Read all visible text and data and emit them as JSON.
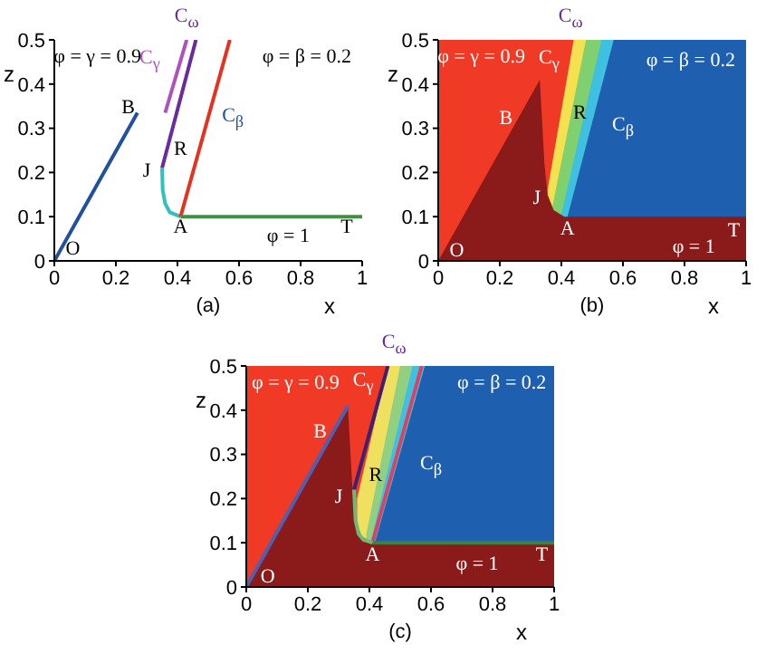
{
  "chart_data": [
    {
      "type": "line",
      "xlabel": "x",
      "ylabel": "z",
      "xlim": [
        0,
        1
      ],
      "xticks": [
        0,
        0.2,
        0.4,
        0.6,
        0.8,
        1
      ],
      "ylim": [
        0,
        0.5
      ],
      "yticks": [
        0,
        0.1,
        0.2,
        0.3,
        0.4,
        0.5
      ],
      "series": [
        {
          "color": "#2050a0",
          "x": [
            0,
            0.27
          ],
          "values": [
            0,
            0.335
          ]
        },
        {
          "color": "#b050c0",
          "x": [
            0.36,
            0.43
          ],
          "values": [
            0.335,
            0.5
          ]
        },
        {
          "color": "#6a2aa0",
          "x": [
            0.35,
            0.46
          ],
          "values": [
            0.21,
            0.5
          ]
        },
        {
          "color": "#30c0c0",
          "x": [
            0.35,
            0.352,
            0.36,
            0.375,
            0.41
          ],
          "values": [
            0.21,
            0.16,
            0.13,
            0.11,
            0.1
          ]
        },
        {
          "color": "#e83020",
          "x": [
            0.41,
            0.57
          ],
          "values": [
            0.1,
            0.5
          ]
        },
        {
          "color": "#409040",
          "x": [
            0.41,
            1
          ],
          "values": [
            0.1,
            0.1
          ]
        }
      ],
      "annotations": [
        "φ = γ = 0.9",
        "C$_{γ}$",
        "C$_{ω}$",
        "φ = β = 0.2",
        "B",
        "C$_{β}$",
        "R",
        "J",
        "A",
        "T",
        "φ = 1",
        "O",
        "(a)"
      ]
    },
    {
      "type": "area",
      "xlabel": "x",
      "ylabel": "z",
      "xlim": [
        0,
        1
      ],
      "xticks": [
        0,
        0.2,
        0.4,
        0.6,
        0.8,
        1
      ],
      "ylim": [
        0,
        0.5
      ],
      "yticks": [
        0,
        0.1,
        0.2,
        0.3,
        0.4,
        0.5
      ],
      "series": [
        {
          "color": "#f03a25",
          "x": [
            0,
            1
          ],
          "values": [
            0.5,
            0.5
          ]
        },
        {
          "color": "#f5e050",
          "x": [
            0.355,
            0.44,
            1
          ],
          "values": [
            0.16,
            0.5,
            0.5
          ]
        },
        {
          "color": "#80d070",
          "x": [
            0.37,
            0.48,
            1
          ],
          "values": [
            0.12,
            0.5,
            0.5
          ]
        },
        {
          "color": "#40c0e0",
          "x": [
            0.4,
            0.53,
            1
          ],
          "values": [
            0.105,
            0.5,
            0.5
          ]
        },
        {
          "color": "#1f5fb0",
          "x": [
            0.42,
            0.57,
            1
          ],
          "values": [
            0.1,
            0.5,
            0.5
          ]
        },
        {
          "color": "#8b1a1a",
          "x": [
            0,
            0.33,
            0.345,
            0.355,
            0.375,
            0.41,
            1
          ],
          "values": [
            0,
            0.41,
            0.22,
            0.15,
            0.115,
            0.1,
            0.1
          ]
        }
      ],
      "annotations": [
        "φ = γ = 0.9",
        "C$_{γ}$",
        "C$_{ω}$",
        "φ = β = 0.2",
        "B",
        "R",
        "C$_{β}$",
        "J",
        "A",
        "T",
        "φ = 1",
        "O",
        "(b)"
      ]
    },
    {
      "type": "area",
      "xlabel": "x",
      "ylabel": "z",
      "xlim": [
        0,
        1
      ],
      "xticks": [
        0,
        0.2,
        0.4,
        0.6,
        0.8,
        1
      ],
      "ylim": [
        0,
        0.5
      ],
      "yticks": [
        0,
        0.1,
        0.2,
        0.3,
        0.4,
        0.5
      ],
      "series": [
        {
          "color": "#f03a25",
          "x": [
            0,
            1
          ],
          "values": [
            0.5,
            0.5
          ]
        },
        {
          "color": "#f0e060",
          "x": [
            0.36,
            0.46,
            1
          ],
          "values": [
            0.2,
            0.5,
            0.5
          ]
        },
        {
          "color": "#90d080",
          "x": [
            0.39,
            0.5,
            1
          ],
          "values": [
            0.12,
            0.5,
            0.5
          ]
        },
        {
          "color": "#40c0e0",
          "x": [
            0.405,
            0.54,
            1
          ],
          "values": [
            0.105,
            0.5,
            0.5
          ]
        },
        {
          "color": "#1f5fb0",
          "x": [
            0.42,
            0.58,
            1
          ],
          "values": [
            0.105,
            0.5,
            0.5
          ]
        },
        {
          "color": "#8b1a1a",
          "x": [
            0,
            0.33,
            0.345,
            0.355,
            0.375,
            0.41,
            1
          ],
          "values": [
            0,
            0.41,
            0.22,
            0.15,
            0.115,
            0.1,
            0.1
          ]
        },
        {
          "type": "line",
          "color": "#5060b0",
          "x": [
            0,
            0.33
          ],
          "values": [
            0,
            0.41
          ]
        },
        {
          "type": "line",
          "color": "#402070",
          "x": [
            0.35,
            0.46
          ],
          "values": [
            0.22,
            0.5
          ]
        },
        {
          "type": "line",
          "color": "#e04060",
          "x": [
            0.41,
            0.57
          ],
          "values": [
            0.1,
            0.5
          ]
        },
        {
          "type": "line",
          "color": "#408040",
          "x": [
            0.41,
            1
          ],
          "values": [
            0.1,
            0.1
          ]
        },
        {
          "type": "line",
          "color": "#70b878",
          "x": [
            0.35,
            0.355,
            0.365,
            0.38,
            0.41
          ],
          "values": [
            0.22,
            0.15,
            0.12,
            0.107,
            0.1
          ]
        }
      ],
      "annotations": [
        "φ = γ = 0.9",
        "C$_{γ}$",
        "C$_{ω}$",
        "φ = β = 0.2",
        "B",
        "R",
        "C$_{β}$",
        "J",
        "A",
        "T",
        "φ = 1",
        "O",
        "(c)"
      ]
    }
  ]
}
